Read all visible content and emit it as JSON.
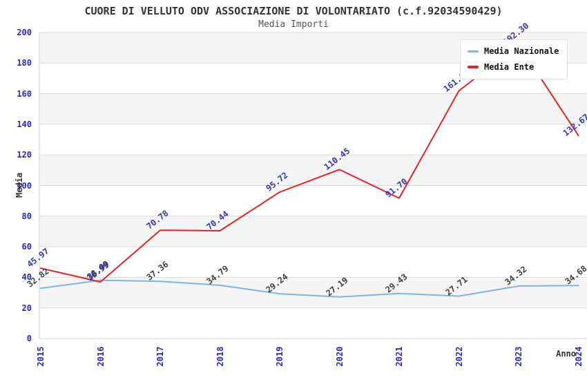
{
  "chart_data": {
    "type": "line",
    "title": "CUORE DI VELLUTO ODV ASSOCIAZIONE DI VOLONTARIATO (c.f.92034590429)",
    "subtitle": "Media Importi",
    "xlabel": "Anno",
    "ylabel": "Media",
    "categories": [
      "2015",
      "2016",
      "2017",
      "2018",
      "2019",
      "2020",
      "2021",
      "2022",
      "2023",
      "2024"
    ],
    "ylim": [
      0,
      200
    ],
    "ytick_step": 20,
    "grid": true,
    "legend_position": "top-right",
    "series": [
      {
        "name": "Media Nazionale",
        "color": "#7cb5ec",
        "label_color": "#404040",
        "values": [
          32.82,
          38.09,
          37.36,
          34.79,
          29.24,
          27.19,
          29.43,
          27.71,
          34.32,
          34.68
        ]
      },
      {
        "name": "Media Ente",
        "color": "#e82222",
        "label_color": "#3434bd",
        "values": [
          45.97,
          36.99,
          70.78,
          70.44,
          95.72,
          110.45,
          91.7,
          161.85,
          192.3,
          132.67
        ]
      }
    ],
    "colors": {
      "tick": "#2525d6",
      "grid": "#d9d9d9",
      "band": "#f5f5f5",
      "axis_line": "#cfcfcf",
      "title": "#333333",
      "subtitle": "#555555",
      "axis_title": "#333333"
    }
  }
}
